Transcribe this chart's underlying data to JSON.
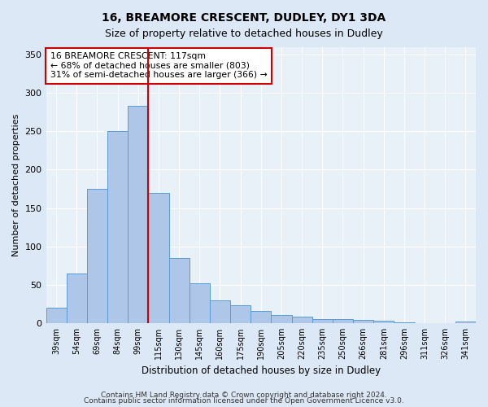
{
  "title": "16, BREAMORE CRESCENT, DUDLEY, DY1 3DA",
  "subtitle": "Size of property relative to detached houses in Dudley",
  "xlabel": "Distribution of detached houses by size in Dudley",
  "ylabel": "Number of detached properties",
  "categories": [
    "39sqm",
    "54sqm",
    "69sqm",
    "84sqm",
    "99sqm",
    "115sqm",
    "130sqm",
    "145sqm",
    "160sqm",
    "175sqm",
    "190sqm",
    "205sqm",
    "220sqm",
    "235sqm",
    "250sqm",
    "266sqm",
    "281sqm",
    "296sqm",
    "311sqm",
    "326sqm",
    "341sqm"
  ],
  "values": [
    20,
    65,
    175,
    250,
    283,
    170,
    85,
    52,
    30,
    23,
    16,
    11,
    8,
    5,
    5,
    4,
    3,
    1,
    0,
    0,
    2
  ],
  "bar_color": "#aec6e8",
  "bar_edge_color": "#5b9bd5",
  "vline_x": 4.5,
  "vline_color": "#cc0000",
  "annotation_text": "16 BREAMORE CRESCENT: 117sqm\n← 68% of detached houses are smaller (803)\n31% of semi-detached houses are larger (366) →",
  "annotation_box_color": "#ffffff",
  "annotation_box_edge_color": "#cc0000",
  "ylim": [
    0,
    360
  ],
  "yticks": [
    0,
    50,
    100,
    150,
    200,
    250,
    300,
    350
  ],
  "footer1": "Contains HM Land Registry data © Crown copyright and database right 2024.",
  "footer2": "Contains public sector information licensed under the Open Government Licence v3.0.",
  "bg_color": "#dce8f5",
  "plot_bg_color": "#e8f0f8",
  "title_fontsize": 10,
  "subtitle_fontsize": 9
}
